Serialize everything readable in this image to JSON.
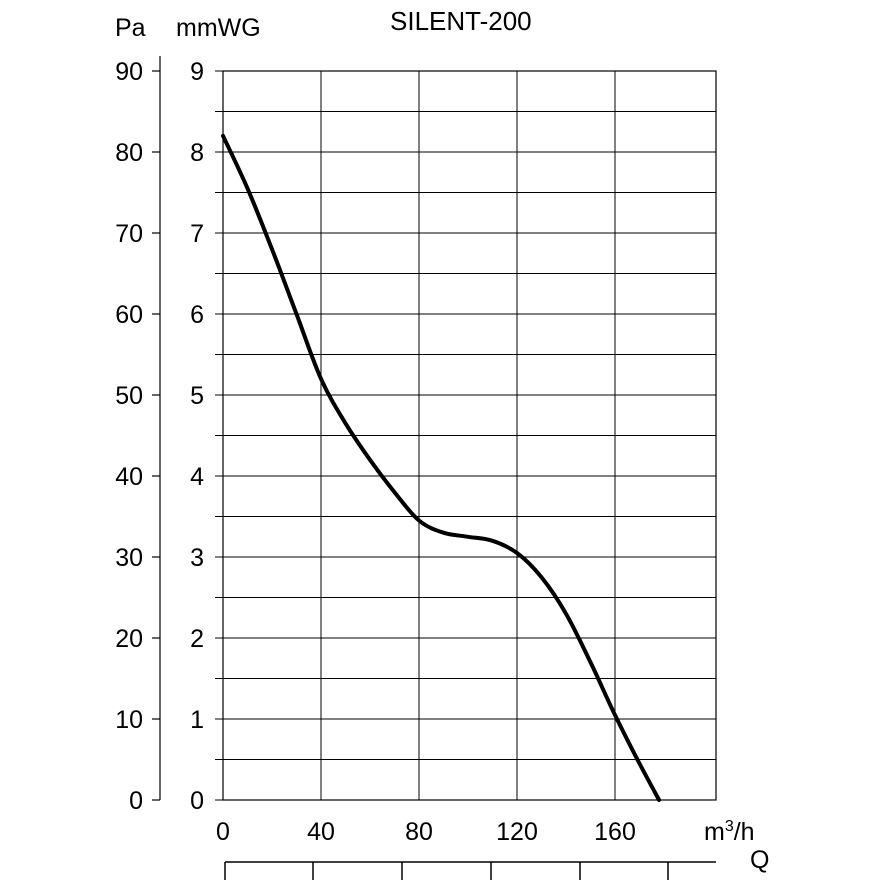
{
  "chart_data": {
    "type": "line",
    "title": "SILENT-200",
    "y_left_label": "Pa",
    "y_right_label": "mmWG",
    "x_unit_label": "m³/h",
    "x_symbol": "Q",
    "y_left_ticks": [
      "0",
      "10",
      "20",
      "30",
      "40",
      "50",
      "60",
      "70",
      "80",
      "90"
    ],
    "y_right_ticks": [
      "0",
      "1",
      "2",
      "3",
      "4",
      "5",
      "6",
      "7",
      "8",
      "9"
    ],
    "x_ticks": [
      "0",
      "40",
      "80",
      "120",
      "160"
    ],
    "xlim": [
      0,
      200
    ],
    "ylim_mmwg": [
      0,
      9
    ],
    "grid": true,
    "colors": {
      "line": "#000000",
      "grid": "#000000",
      "background": "#ffffff"
    },
    "series": [
      {
        "x": [
          0,
          10,
          20,
          30,
          40,
          50,
          60,
          70,
          80,
          90,
          100,
          110,
          120,
          130,
          140,
          150,
          160,
          170,
          178
        ],
        "y": [
          8.2,
          7.55,
          6.8,
          6.0,
          5.2,
          4.65,
          4.2,
          3.8,
          3.45,
          3.3,
          3.25,
          3.2,
          3.05,
          2.75,
          2.3,
          1.7,
          1.05,
          0.45,
          0.0
        ]
      }
    ]
  }
}
